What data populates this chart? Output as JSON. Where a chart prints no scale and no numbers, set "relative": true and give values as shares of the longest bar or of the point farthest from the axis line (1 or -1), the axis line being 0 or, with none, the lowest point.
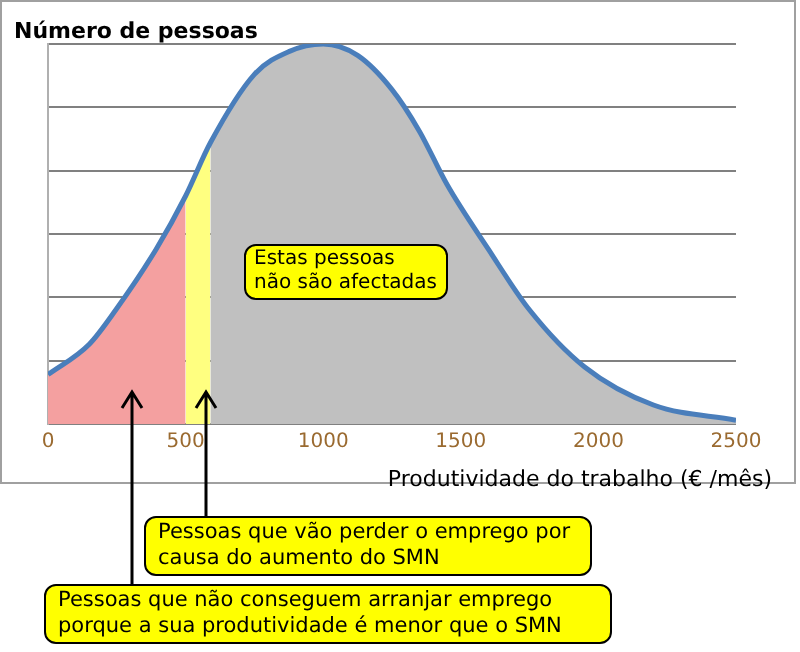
{
  "chart_data": {
    "type": "area",
    "ylabel": "Número de pessoas",
    "xlabel": "Produtividade do trabalho (€ /mês)",
    "relative": true,
    "xlim": [
      0,
      2500
    ],
    "xticks": [
      0,
      500,
      1000,
      1500,
      2000,
      2500
    ],
    "grid": "y",
    "legend": false,
    "marker": "none",
    "series": [
      {
        "type": "line",
        "color": "#4a7ebb",
        "x": [
          0,
          150,
          246,
          393,
          500,
          590,
          750,
          875,
          1000,
          1125,
          1250,
          1350,
          1450,
          1600,
          1750,
          1950,
          2200,
          2500
        ],
        "values": [
          0.13,
          0.21,
          0.3,
          0.46,
          0.6,
          0.74,
          0.92,
          0.98,
          1,
          0.97,
          0.88,
          0.77,
          0.63,
          0.46,
          0.3,
          0.15,
          0.05,
          0.01
        ]
      },
      {
        "color": "#f4a0a0",
        "x": [
          0,
          150,
          246,
          393,
          500
        ],
        "values": [
          0.13,
          0.21,
          0.3,
          0.46,
          0.6
        ]
      },
      {
        "color": "#ffff80",
        "x": [
          500,
          590
        ],
        "values": [
          0.6,
          0.74
        ]
      },
      {
        "color": "#c0c0c0",
        "x": [
          590,
          750,
          875,
          1000,
          1125,
          1250,
          1350,
          1450,
          1600,
          1750,
          1950,
          2200,
          2500
        ],
        "values": [
          0.74,
          0.92,
          0.98,
          1,
          0.97,
          0.88,
          0.77,
          0.63,
          0.46,
          0.3,
          0.15,
          0.05,
          0.01
        ]
      }
    ],
    "annotations": [
      "Estas pessoas não são afectadas",
      "Pessoas que vão perder o emprego por causa do aumento do SMN",
      "Pessoas que não conseguem arranjar emprego porque a sua produtividade é menor que o SMN"
    ]
  }
}
